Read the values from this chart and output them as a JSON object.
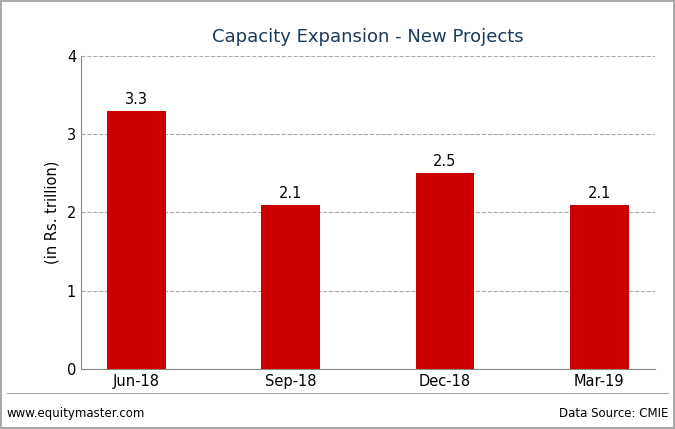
{
  "title": "Capacity Expansion - New Projects",
  "categories": [
    "Jun-18",
    "Sep-18",
    "Dec-18",
    "Mar-19"
  ],
  "values": [
    3.3,
    2.1,
    2.5,
    2.1
  ],
  "bar_color": "#cc0000",
  "ylabel": "(in Rs. trillion)",
  "ylim": [
    0,
    4
  ],
  "yticks": [
    0,
    1,
    2,
    3,
    4
  ],
  "title_fontsize": 13,
  "label_fontsize": 10.5,
  "tick_fontsize": 10.5,
  "annotation_fontsize": 10.5,
  "footer_left": "www.equitymaster.com",
  "footer_right": "Data Source: CMIE",
  "background_color": "#ffffff",
  "grid_color": "#aaaaaa",
  "bar_width": 0.38,
  "title_color": "#1a3a5c",
  "border_color": "#aaaaaa",
  "spine_color": "#888888"
}
